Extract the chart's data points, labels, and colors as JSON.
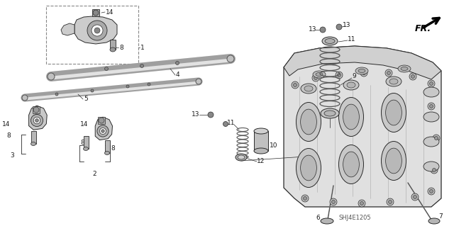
{
  "background_color": "#ffffff",
  "diagram_code": "SHJ4E1205",
  "figsize": [
    6.4,
    3.19
  ],
  "dpi": 100,
  "text_color": "#1a1a1a",
  "line_color": "#2a2a2a",
  "label_fontsize": 6.5,
  "part_fill": "#d8d8d8",
  "part_edge": "#2a2a2a"
}
